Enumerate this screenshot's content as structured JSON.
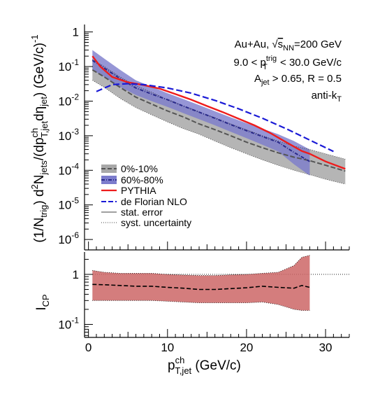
{
  "chart_data": [
    {
      "type": "line",
      "panel": "upper",
      "ylabel": "(1/N_trig) d²N_jets/(dp^ch_T,jet dη_jet)  (GeV/c)⁻¹",
      "ylabel_parts": {
        "p1": "(1/N",
        "p1sub": "trig",
        "p2": ") d",
        "p2sup": "2",
        "p3": "N",
        "p3sub": "jets",
        "p4": "/(dp",
        "p4sup": "ch",
        "p4sub": "T,jet",
        "p5": "dη",
        "p5sub": "jet",
        "p6": ")  (GeV/c)",
        "p6sup": "-1"
      },
      "yscale": "log",
      "ylim": [
        5e-07,
        1.3
      ],
      "xlim": [
        -0.5,
        33
      ],
      "y_tick_labels": [
        {
          "value": 1,
          "base": "1",
          "exp": ""
        },
        {
          "value": 0.1,
          "base": "10",
          "exp": "-1"
        },
        {
          "value": 0.01,
          "base": "10",
          "exp": "-2"
        },
        {
          "value": 0.001,
          "base": "10",
          "exp": "-3"
        },
        {
          "value": 0.0001,
          "base": "10",
          "exp": "-4"
        },
        {
          "value": 1e-05,
          "base": "10",
          "exp": "-5"
        },
        {
          "value": 1e-06,
          "base": "10",
          "exp": "-6"
        }
      ],
      "annotations": {
        "line1": {
          "a": "Au+Au, ",
          "b": "√",
          "c": "s",
          "csub": "NN",
          "d": "=200 GeV"
        },
        "line2": {
          "a": "9.0 < p",
          "sup": "trig",
          "sub": "T",
          "b": " < 30.0 GeV/c"
        },
        "line3": {
          "a": "A",
          "sub": "jet",
          "b": " > 0.65, R = 0.5"
        },
        "line4": {
          "a": "anti-k",
          "sub": "T"
        }
      },
      "legend": {
        "placement": "lower-left",
        "entries": [
          {
            "label": "0%-10%",
            "style": "gray-band-dashed"
          },
          {
            "label": "60%-80%",
            "style": "blue-band-dashdot"
          },
          {
            "label": "PYTHIA",
            "style": "red-line"
          },
          {
            "label": "de Florian NLO",
            "style": "blue-dashed"
          },
          {
            "label": "stat. error",
            "style": "thin-solid"
          },
          {
            "label": "syst. uncertainty",
            "style": "thin-dotted"
          }
        ]
      },
      "series": [
        {
          "name": "0%-10%",
          "color": "#555555",
          "band_color": "#a8a8a8",
          "x": [
            0.5,
            2,
            4,
            6,
            8,
            10,
            12,
            14,
            16,
            18,
            20,
            22,
            24,
            26,
            28,
            30,
            32.5
          ],
          "y": [
            0.08,
            0.05,
            0.025,
            0.013,
            0.0082,
            0.0052,
            0.0035,
            0.0022,
            0.0015,
            0.001,
            0.00065,
            0.00045,
            0.00032,
            0.00024,
            0.00019,
            0.00014,
            9.5e-05
          ],
          "y_low": [
            0.04,
            0.025,
            0.012,
            0.0065,
            0.004,
            0.0025,
            0.0016,
            0.0011,
            0.0007,
            0.00045,
            0.0003,
            0.0002,
            0.00014,
            0.0001,
            7.5e-05,
            5.5e-05,
            4e-05
          ],
          "y_high": [
            0.16,
            0.1,
            0.05,
            0.028,
            0.018,
            0.011,
            0.0073,
            0.0049,
            0.0033,
            0.0022,
            0.0015,
            0.001,
            0.0007,
            0.0005,
            0.0004,
            0.0003,
            0.00021
          ]
        },
        {
          "name": "60%-80%",
          "color": "#2a2a8a",
          "band_color": "#7c7ccc",
          "x": [
            0.5,
            2,
            4,
            6,
            8,
            10,
            12,
            14,
            16,
            18,
            20,
            22,
            24,
            26,
            28
          ],
          "y": [
            0.15,
            0.09,
            0.045,
            0.024,
            0.016,
            0.011,
            0.0072,
            0.0048,
            0.0032,
            0.0021,
            0.0014,
            0.00095,
            0.00065,
            0.00033,
            0.00018
          ],
          "y_low": [
            0.08,
            0.05,
            0.026,
            0.015,
            0.01,
            0.0068,
            0.0045,
            0.003,
            0.002,
            0.0013,
            0.00085,
            0.00055,
            0.00035,
            0.00015,
            7e-05
          ],
          "y_high": [
            0.3,
            0.17,
            0.08,
            0.04,
            0.026,
            0.017,
            0.0115,
            0.0077,
            0.0051,
            0.0034,
            0.0023,
            0.0016,
            0.0011,
            0.0007,
            0.0004
          ]
        },
        {
          "name": "PYTHIA",
          "color": "#ee1c1c",
          "x": [
            0.5,
            1.5,
            3,
            5,
            7,
            9,
            11,
            13,
            15,
            17,
            19,
            21,
            23,
            25,
            27,
            28,
            30,
            32.5
          ],
          "y": [
            0.2,
            0.1,
            0.05,
            0.035,
            0.029,
            0.023,
            0.016,
            0.011,
            0.0072,
            0.0048,
            0.0031,
            0.002,
            0.0012,
            0.00065,
            0.00036,
            0.0003,
            0.00018,
            0.00011
          ]
        },
        {
          "name": "de Florian NLO",
          "color": "#1a1ad6",
          "x": [
            1,
            3,
            5,
            7,
            10,
            13,
            16,
            19,
            22,
            25,
            28,
            31
          ],
          "y": [
            0.019,
            0.03,
            0.032,
            0.03,
            0.024,
            0.017,
            0.0105,
            0.006,
            0.0032,
            0.0016,
            0.00075,
            0.00035
          ]
        }
      ]
    },
    {
      "type": "line",
      "panel": "lower",
      "ylabel": "I_CP",
      "ylabel_parts": {
        "a": "I",
        "sub": "CP"
      },
      "xlabel": "p^ch_T,jet (GeV/c)",
      "xlabel_parts": {
        "a": "p",
        "sup": "ch",
        "sub": "T,jet",
        "b": " (GeV/c)"
      },
      "yscale": "log",
      "ylim": [
        0.055,
        2.8
      ],
      "xlim": [
        -0.5,
        33
      ],
      "x_tick_labels": [
        "0",
        "10",
        "20",
        "30"
      ],
      "y_tick_labels": [
        {
          "value": 1,
          "base": "1",
          "exp": ""
        },
        {
          "value": 0.1,
          "base": "10",
          "exp": "-1"
        }
      ],
      "reference_line": 1,
      "series": [
        {
          "name": "",
          "color": "#d73a3a",
          "band_color": "#cc6666",
          "x": [
            0.5,
            2,
            4,
            6,
            8,
            10,
            12,
            14,
            16,
            18,
            20,
            22,
            24,
            26,
            27,
            28
          ],
          "y": [
            0.63,
            0.62,
            0.6,
            0.58,
            0.58,
            0.55,
            0.53,
            0.5,
            0.5,
            0.52,
            0.54,
            0.58,
            0.55,
            0.53,
            0.6,
            0.55
          ],
          "y_low": [
            0.3,
            0.3,
            0.3,
            0.3,
            0.3,
            0.29,
            0.28,
            0.27,
            0.27,
            0.27,
            0.27,
            0.28,
            0.25,
            0.2,
            0.19,
            0.19
          ],
          "y_high": [
            1.2,
            1.1,
            1.05,
            1.05,
            1.05,
            1.0,
            0.97,
            0.95,
            0.95,
            0.98,
            1.0,
            1.05,
            1.1,
            1.5,
            2.2,
            2.4
          ]
        }
      ]
    }
  ]
}
